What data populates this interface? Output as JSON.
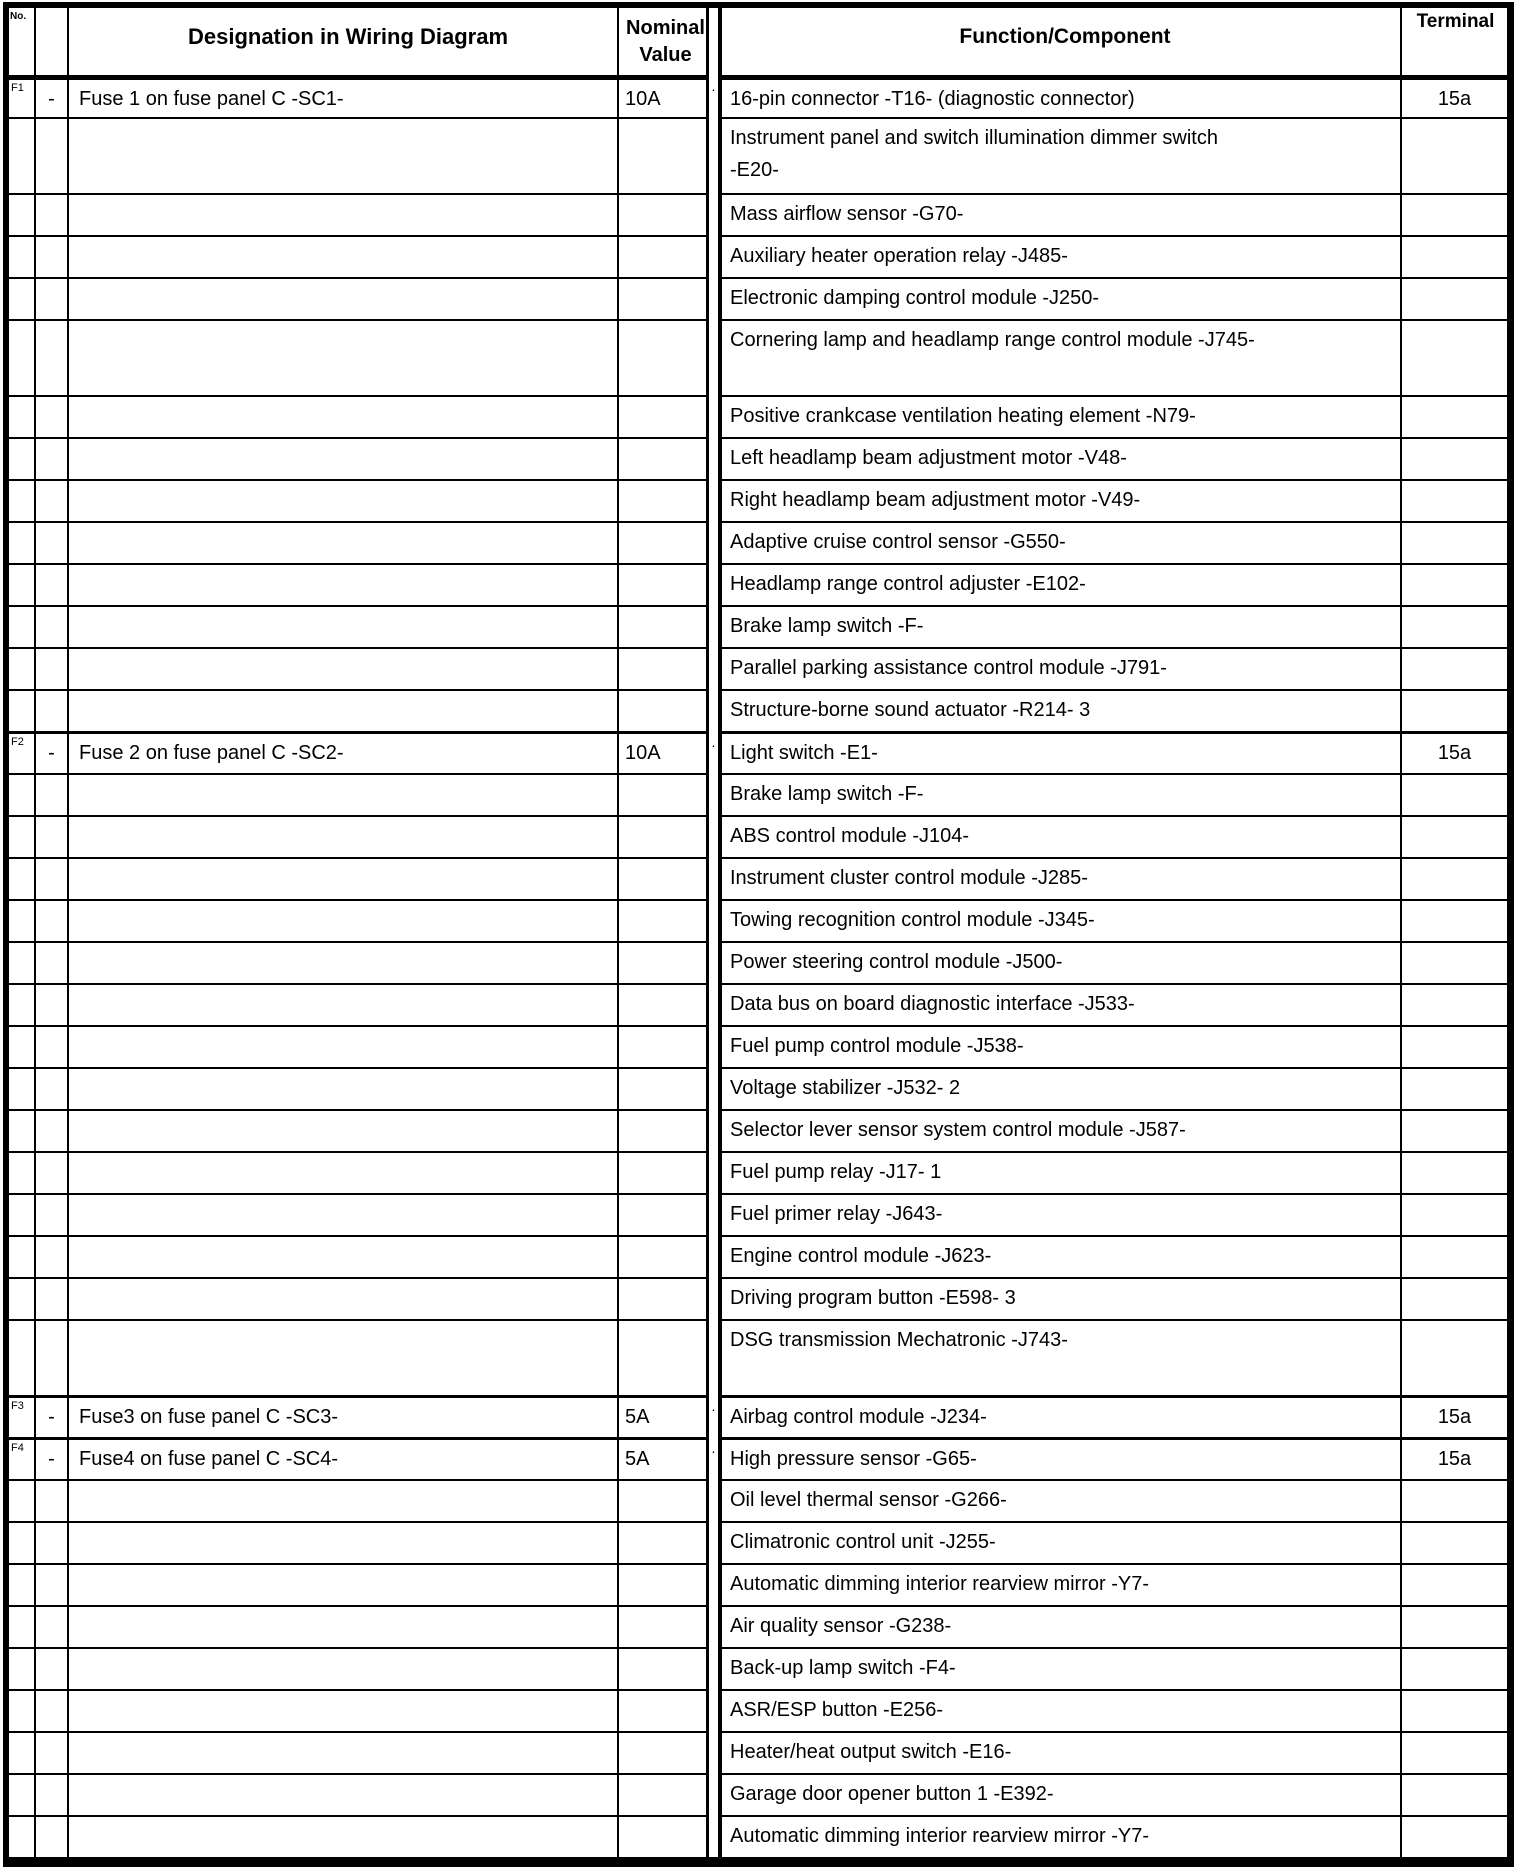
{
  "colors": {
    "border": "#000000",
    "background": "#ffffff",
    "text": "#000000"
  },
  "header": {
    "no_label": "No.",
    "designation_label": "Designation in Wiring Diagram",
    "nominal_label": "Nominal\nValue",
    "function_label": "Function/Component",
    "terminal_label": "Terminal"
  },
  "rows": [
    {
      "id": "F1",
      "dash": "-",
      "designation": "Fuse 1 on fuse panel C -SC1-",
      "nominal": "10A",
      "dot": "·",
      "function": "16-pin connector -T16- (diagnostic connector)",
      "terminal": "15a",
      "h": 1,
      "group": true
    },
    {
      "function": "Instrument panel and switch illumination dimmer switch\n-E20-",
      "h": 2
    },
    {
      "function": "Mass airflow sensor -G70-",
      "h": 1
    },
    {
      "function": "Auxiliary heater operation relay -J485-",
      "h": 1
    },
    {
      "function": "Electronic damping control module -J250-",
      "h": 1
    },
    {
      "function": "Cornering lamp and headlamp range control module -J745-",
      "h": 2
    },
    {
      "function": "Positive crankcase ventilation heating element -N79-",
      "h": 1
    },
    {
      "function": "Left headlamp beam adjustment motor -V48-",
      "h": 1
    },
    {
      "function": "Right headlamp beam adjustment motor -V49-",
      "h": 1
    },
    {
      "function": "Adaptive cruise control sensor -G550-",
      "h": 1
    },
    {
      "function": "Headlamp range control adjuster -E102-",
      "h": 1
    },
    {
      "function": "Brake lamp switch -F-",
      "h": 1
    },
    {
      "function": "Parallel parking assistance control module -J791-",
      "h": 1
    },
    {
      "function": "Structure-borne sound actuator -R214- 3",
      "h": 1
    },
    {
      "id": "F2",
      "dash": "-",
      "designation": "Fuse 2 on fuse panel C -SC2-",
      "nominal": "10A",
      "dot": "·",
      "function": "Light switch -E1-",
      "terminal": "15a",
      "h": 1,
      "group": true
    },
    {
      "function": "Brake lamp switch -F-",
      "h": 1
    },
    {
      "function": "ABS control module -J104-",
      "h": 1
    },
    {
      "function": "Instrument cluster control module -J285-",
      "h": 1
    },
    {
      "function": "Towing recognition control module -J345-",
      "h": 1
    },
    {
      "function": "Power steering control module -J500-",
      "h": 1
    },
    {
      "function": "Data bus on board diagnostic interface -J533-",
      "h": 1
    },
    {
      "function": "Fuel pump control module -J538-",
      "h": 1
    },
    {
      "function": "Voltage stabilizer -J532- 2",
      "h": 1
    },
    {
      "function": "Selector lever sensor system control module -J587-",
      "h": 1
    },
    {
      "function": "Fuel pump relay -J17- 1",
      "h": 1
    },
    {
      "function": "Fuel primer relay -J643-",
      "h": 1
    },
    {
      "function": "Engine control module -J623-",
      "h": 1
    },
    {
      "function": "Driving program button -E598- 3",
      "h": 1
    },
    {
      "function": "DSG transmission Mechatronic -J743-",
      "h": 2
    },
    {
      "id": "F3",
      "dash": "-",
      "designation": "Fuse3 on fuse panel C -SC3-",
      "nominal": "5A",
      "dot": "·",
      "function": "Airbag control module -J234-",
      "terminal": "15a",
      "h": 1,
      "group": true
    },
    {
      "id": "F4",
      "dash": "-",
      "designation": "Fuse4 on fuse panel C -SC4-",
      "nominal": "5A",
      "dot": "·",
      "function": "High pressure sensor -G65-",
      "terminal": "15a",
      "h": 1,
      "group": true
    },
    {
      "function": "Oil level thermal sensor -G266-",
      "h": 1
    },
    {
      "function": "Climatronic control unit -J255-",
      "h": 1
    },
    {
      "function": "Automatic dimming interior rearview mirror -Y7-",
      "h": 1
    },
    {
      "function": "Air quality sensor -G238-",
      "h": 1
    },
    {
      "function": "Back-up lamp switch -F4-",
      "h": 1
    },
    {
      "function": "ASR/ESP button -E256-",
      "h": 1
    },
    {
      "function": "Heater/heat output switch -E16-",
      "h": 1
    },
    {
      "function": "Garage door opener button 1 -E392-",
      "h": 1
    },
    {
      "function": "Automatic dimming interior rearview mirror -Y7-",
      "h": 1
    }
  ]
}
